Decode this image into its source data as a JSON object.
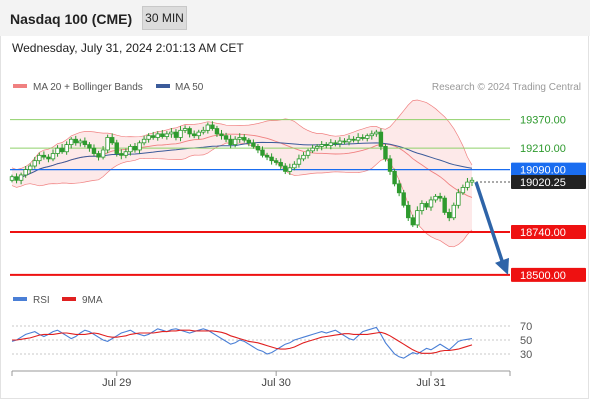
{
  "header": {
    "title": "Nasdaq 100 (CME)",
    "timeframe": "30 MIN",
    "datetime": "Wednesday, July 31, 2024 2:01:13 AM CET"
  },
  "colors": {
    "candle": "#2e9a2e",
    "bollinger": "#f08080",
    "bollinger_fill": "#fde3e3",
    "ma50": "#3b5b9a",
    "resistance": "#8fd16a",
    "pivot": "#1a6df0",
    "support": "#ee1111",
    "arrow": "#2e64a8",
    "rsi": "#4a7fd6",
    "rsi_ma": "#e02020"
  },
  "chart_data": [
    {
      "type": "candlestick",
      "legend": [
        {
          "name": "MA 20 + Bollinger Bands",
          "color": "#f08080"
        },
        {
          "name": "MA 50",
          "color": "#3b5b9a"
        }
      ],
      "credit": "Research © 2024 Trading Central",
      "ylim": [
        18460,
        19480
      ],
      "x_ticks": [
        {
          "label": "Jul 29",
          "index": 23
        },
        {
          "label": "Jul 30",
          "index": 58
        },
        {
          "label": "Jul 31",
          "index": 92
        }
      ],
      "close": [
        19050,
        19030,
        19060,
        19090,
        19110,
        19140,
        19170,
        19160,
        19150,
        19180,
        19210,
        19190,
        19230,
        19260,
        19240,
        19250,
        19230,
        19210,
        19180,
        19160,
        19200,
        19270,
        19240,
        19180,
        19170,
        19190,
        19220,
        19200,
        19240,
        19260,
        19280,
        19270,
        19290,
        19275,
        19290,
        19300,
        19270,
        19310,
        19320,
        19290,
        19280,
        19300,
        19310,
        19340,
        19320,
        19290,
        19280,
        19260,
        19230,
        19260,
        19270,
        19255,
        19240,
        19220,
        19200,
        19170,
        19160,
        19140,
        19130,
        19110,
        19080,
        19100,
        19120,
        19150,
        19170,
        19195,
        19210,
        19220,
        19230,
        19225,
        19240,
        19235,
        19250,
        19245,
        19260,
        19255,
        19270,
        19265,
        19280,
        19290,
        19300,
        19220,
        19150,
        19080,
        19010,
        18960,
        18890,
        18820,
        18780,
        18860,
        18900,
        18880,
        18920,
        18940,
        18930,
        18850,
        18820,
        18890,
        18960,
        18990,
        19020,
        19030
      ],
      "levels": [
        {
          "value": 19370.0,
          "label": "19370.00",
          "kind": "resistance"
        },
        {
          "value": 19210.0,
          "label": "19210.00",
          "kind": "resistance"
        },
        {
          "value": 19090.0,
          "label": "19090.00",
          "kind": "pivot"
        },
        {
          "value": 19020.25,
          "label": "19020.25",
          "kind": "last_price"
        },
        {
          "value": 18740.0,
          "label": "18740.00",
          "kind": "support"
        },
        {
          "value": 18500.0,
          "label": "18500.00",
          "kind": "support"
        }
      ],
      "forecast": {
        "from": 19020,
        "to": 18500
      }
    },
    {
      "type": "line",
      "legend": [
        {
          "name": "RSI",
          "color": "#4a7fd6"
        },
        {
          "name": "9MA",
          "color": "#e02020"
        }
      ],
      "ylim": [
        10,
        90
      ],
      "y_ticks": [
        70,
        50,
        30
      ],
      "rsi": [
        48,
        50,
        54,
        58,
        60,
        62,
        58,
        55,
        58,
        62,
        64,
        60,
        56,
        52,
        55,
        60,
        64,
        62,
        58,
        54,
        50,
        48,
        52,
        56,
        60,
        62,
        64,
        60,
        58,
        56,
        58,
        62,
        66,
        64,
        62,
        65,
        66,
        64,
        62,
        60,
        62,
        64,
        66,
        64,
        60,
        56,
        52,
        48,
        44,
        46,
        50,
        48,
        44,
        40,
        36,
        34,
        30,
        32,
        36,
        40,
        44,
        46,
        50,
        52,
        54,
        56,
        58,
        60,
        62,
        60,
        62,
        64,
        60,
        56,
        52,
        50,
        56,
        62,
        64,
        66,
        68,
        58,
        46,
        38,
        30,
        26,
        24,
        28,
        32,
        30,
        34,
        38,
        36,
        40,
        44,
        40,
        36,
        42,
        48,
        50,
        51,
        52
      ],
      "rsi_ma": [
        50,
        50,
        51,
        52,
        53,
        55,
        57,
        58,
        58,
        58,
        59,
        60,
        60,
        59,
        58,
        58,
        58,
        59,
        60,
        59,
        57,
        55,
        54,
        54,
        55,
        56,
        58,
        59,
        60,
        60,
        60,
        60,
        61,
        62,
        62,
        63,
        63,
        64,
        64,
        64,
        63,
        63,
        63,
        63,
        63,
        62,
        61,
        59,
        56,
        54,
        52,
        50,
        48,
        47,
        46,
        44,
        42,
        40,
        38,
        37,
        37,
        38,
        40,
        43,
        46,
        48,
        50,
        52,
        54,
        55,
        56,
        57,
        58,
        59,
        59,
        58,
        58,
        58,
        58,
        59,
        60,
        61,
        59,
        56,
        52,
        48,
        44,
        40,
        36,
        33,
        31,
        31,
        31,
        32,
        34,
        35,
        35,
        36,
        37,
        39,
        41,
        43
      ]
    }
  ]
}
